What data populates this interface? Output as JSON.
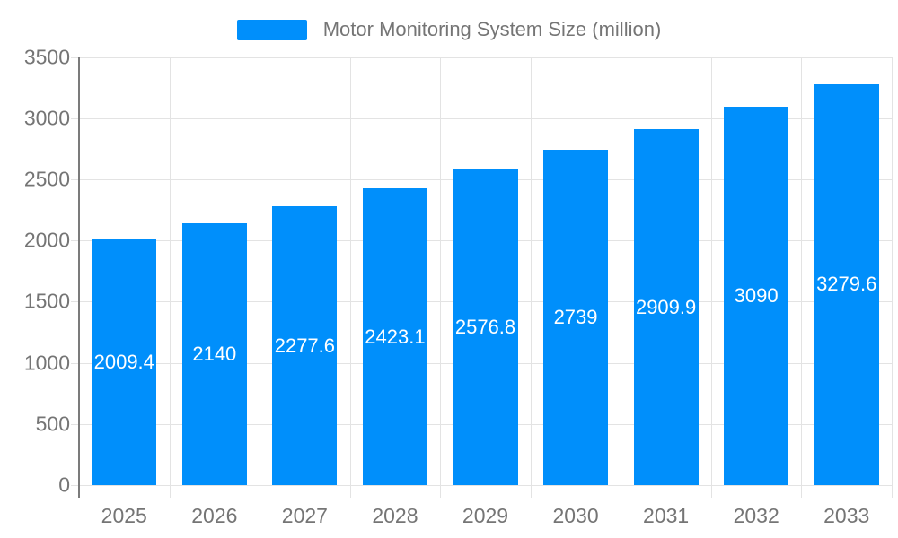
{
  "chart_data": {
    "type": "bar",
    "title": "Motor Monitoring System Size (million)",
    "series_name": "Motor Monitoring System Size (million)",
    "categories": [
      "2025",
      "2026",
      "2027",
      "2028",
      "2029",
      "2030",
      "2031",
      "2032",
      "2033"
    ],
    "values": [
      2009.4,
      2140,
      2277.6,
      2423.1,
      2576.8,
      2739,
      2909.9,
      3090,
      3279.6
    ],
    "data_labels": [
      "2009.4",
      "2140",
      "2277.6",
      "2423.1",
      "2576.8",
      "2739",
      "2909.9",
      "3090",
      "3279.6"
    ],
    "xlabel": "",
    "ylabel": "",
    "ylim": [
      0,
      3500
    ],
    "ytick_step": 500,
    "ytick_labels": [
      "0",
      "500",
      "1000",
      "1500",
      "2000",
      "2500",
      "3000",
      "3500"
    ],
    "grid": true,
    "legend_position": "top",
    "colors": {
      "bar": "#008FFB",
      "bar_value_label": "#ffffff",
      "axis_label": "#757575",
      "grid_line": "#e3e3e3",
      "axis_line": "#7b7b7b",
      "background": "#ffffff"
    }
  }
}
